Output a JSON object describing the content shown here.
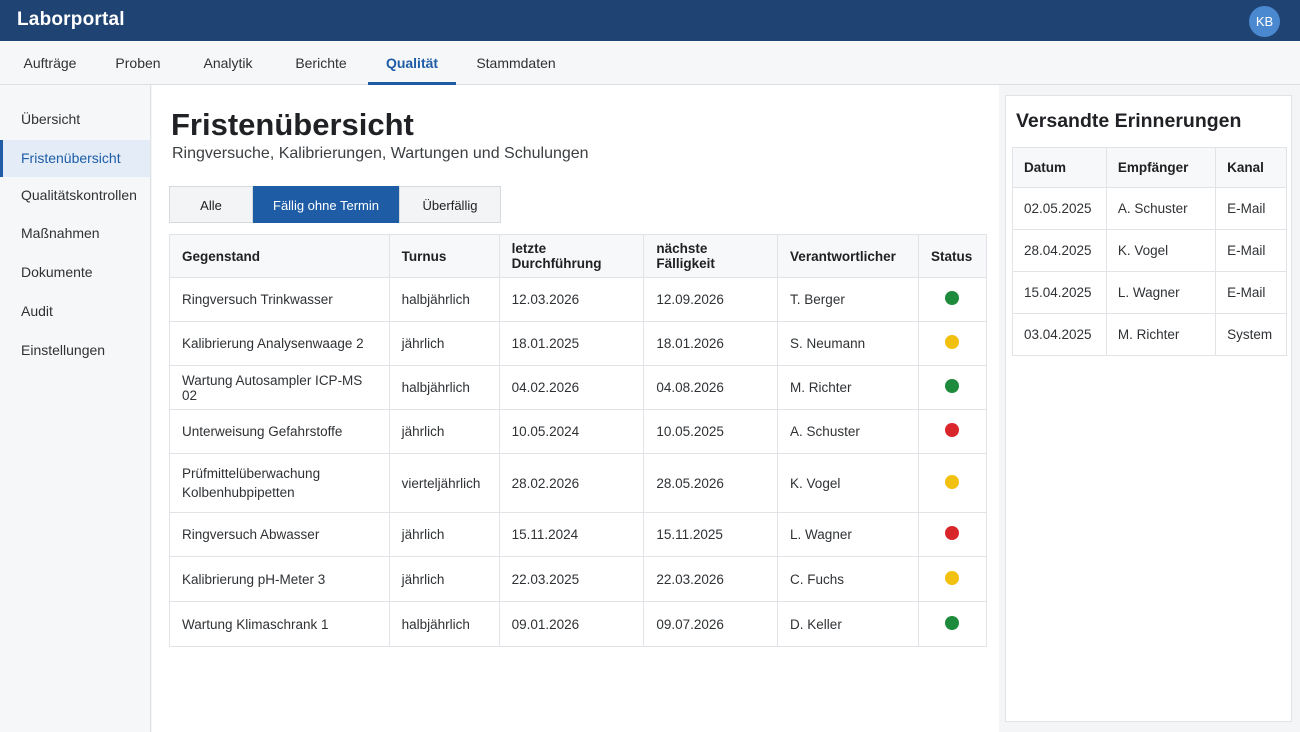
{
  "app": {
    "title": "Laborportal",
    "user_initials": "KB"
  },
  "tabs": [
    {
      "label": "Aufträge"
    },
    {
      "label": "Proben"
    },
    {
      "label": "Analytik"
    },
    {
      "label": "Berichte"
    },
    {
      "label": "Qualität",
      "active": true
    },
    {
      "label": "Stammdaten"
    }
  ],
  "sidebar": {
    "items": [
      {
        "label": "Übersicht"
      },
      {
        "label": "Fristenübersicht",
        "active": true
      },
      {
        "label": "Qualitätskontrollen"
      },
      {
        "label": "Maßnahmen"
      },
      {
        "label": "Dokumente"
      },
      {
        "label": "Audit"
      },
      {
        "label": "Einstellungen"
      }
    ]
  },
  "main": {
    "title": "Fristenübersicht",
    "subtitle": "Ringversuche, Kalibrierungen, Wartungen und Schulungen",
    "filters": [
      {
        "label": "Alle"
      },
      {
        "label": "Fällig ohne Termin",
        "active": true
      },
      {
        "label": "Überfällig"
      }
    ],
    "table": {
      "headers": [
        "Gegenstand",
        "Turnus",
        "letzte Durchführung",
        "nächste Fälligkeit",
        "Verantwortlicher",
        "Status"
      ],
      "rows": [
        {
          "item": "Ringversuch Trinkwasser",
          "interval": "halbjährlich",
          "last": "12.03.2026",
          "next": "12.09.2026",
          "owner": "T. Berger",
          "status": "green"
        },
        {
          "item": "Kalibrierung Analysenwaage 2",
          "interval": "jährlich",
          "last": "18.01.2025",
          "next": "18.01.2026",
          "owner": "S. Neumann",
          "status": "yellow"
        },
        {
          "item": "Wartung Autosampler ICP-MS 02",
          "interval": "halbjährlich",
          "last": "04.02.2026",
          "next": "04.08.2026",
          "owner": "M. Richter",
          "status": "green"
        },
        {
          "item": "Unterweisung Gefahrstoffe",
          "interval": "jährlich",
          "last": "10.05.2024",
          "next": "10.05.2025",
          "owner": "A. Schuster",
          "status": "red"
        },
        {
          "item": "Prüfmittelüberwachung Kolbenhubpipetten",
          "interval": "vierteljährlich",
          "last": "28.02.2026",
          "next": "28.05.2026",
          "owner": "K. Vogel",
          "status": "yellow"
        },
        {
          "item": "Ringversuch Abwasser",
          "interval": "jährlich",
          "last": "15.11.2024",
          "next": "15.11.2025",
          "owner": "L. Wagner",
          "status": "red"
        },
        {
          "item": "Kalibrierung pH-Meter 3",
          "interval": "jährlich",
          "last": "22.03.2025",
          "next": "22.03.2026",
          "owner": "C. Fuchs",
          "status": "yellow"
        },
        {
          "item": "Wartung Klimaschrank 1",
          "interval": "halbjährlich",
          "last": "09.01.2026",
          "next": "09.07.2026",
          "owner": "D. Keller",
          "status": "green"
        }
      ]
    }
  },
  "reminders": {
    "title": "Versandte Erinnerungen",
    "headers": [
      "Datum",
      "Empfänger",
      "Kanal"
    ],
    "rows": [
      {
        "date": "02.05.2025",
        "recipient": "A. Schuster",
        "channel": "E-Mail"
      },
      {
        "date": "28.04.2025",
        "recipient": "K. Vogel",
        "channel": "E-Mail"
      },
      {
        "date": "15.04.2025",
        "recipient": "L. Wagner",
        "channel": "E-Mail"
      },
      {
        "date": "03.04.2025",
        "recipient": "M. Richter",
        "channel": "System"
      }
    ]
  },
  "colors": {
    "header_bg": "#1f4373",
    "accent": "#1e5da6",
    "status_green": "#1e8a3c",
    "status_yellow": "#f2c00f",
    "status_red": "#d9262b"
  }
}
